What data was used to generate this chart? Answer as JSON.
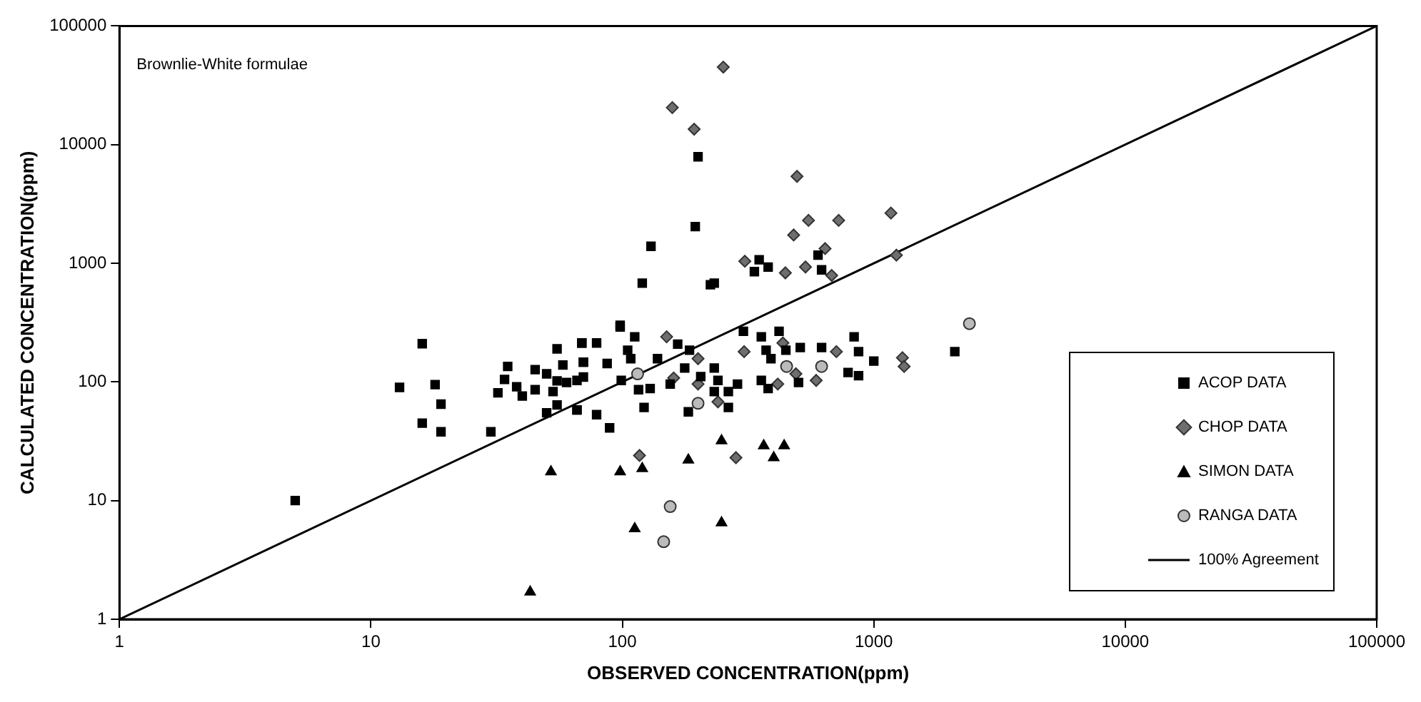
{
  "chart_data": {
    "type": "scatter",
    "xlabel": "OBSERVED CONCENTRATION(ppm)",
    "ylabel": "CALCULATED CONCENTRATION(ppm)",
    "annotations": [
      "Brownlie-White formulae"
    ],
    "log": "xy",
    "xlim": [
      1,
      100000
    ],
    "ylim": [
      1,
      100000
    ],
    "xticks": [
      1,
      10,
      100,
      1000,
      10000,
      100000
    ],
    "yticks": [
      1,
      10,
      100,
      1000,
      10000,
      100000
    ],
    "grid": false,
    "legend": "bottom right",
    "series": [
      {
        "name": "ACOP DATA",
        "color": "#000000",
        "marker": "square",
        "x": [
          5,
          16,
          13,
          18,
          19,
          16,
          19,
          30,
          35,
          34,
          32,
          40,
          38,
          45,
          45,
          50,
          50,
          55,
          58,
          55,
          53,
          60,
          55,
          66,
          66,
          69,
          70,
          98,
          69,
          79,
          112,
          105,
          70,
          87,
          108,
          138,
          166,
          185,
          70,
          99,
          66,
          79,
          89,
          122,
          116,
          129,
          155,
          183,
          205,
          232,
          264,
          264,
          287,
          303,
          357,
          420,
          373,
          390,
          357,
          380,
          447,
          510,
          502,
          620,
          835,
          870,
          1000,
          790,
          870,
          2100,
          177,
          240,
          232,
          200,
          195,
          130,
          120,
          224,
          232,
          335,
          350,
          380,
          600,
          620,
          98
        ],
        "values": [
          10,
          210,
          90,
          95,
          65,
          45,
          38,
          38,
          135,
          105,
          81,
          76,
          91,
          127,
          86,
          117,
          55,
          190,
          139,
          102,
          83,
          99,
          64,
          58,
          103,
          213,
          147,
          290,
          213,
          213,
          240,
          185,
          147,
          143,
          157,
          157,
          208,
          185,
          110,
          103,
          58,
          53,
          41,
          61,
          86,
          88,
          96,
          56,
          111,
          131,
          61,
          83,
          96,
          267,
          240,
          267,
          185,
          157,
          103,
          88,
          185,
          195,
          99,
          195,
          240,
          180,
          150,
          120,
          113,
          180,
          131,
          103,
          83,
          7900,
          2040,
          1390,
          680,
          660,
          680,
          850,
          1070,
          930,
          1170,
          880,
          300
        ]
      },
      {
        "name": "CHOP DATA",
        "color": "#6e6e6e",
        "marker": "diamond",
        "x": [
          252,
          158,
          193,
          495,
          550,
          725,
          1170,
          480,
          307,
          445,
          535,
          640,
          680,
          1230,
          150,
          200,
          305,
          435,
          710,
          1300,
          1320,
          117,
          283,
          240,
          200,
          415,
          590,
          490,
          160
        ],
        "values": [
          45000,
          20500,
          13500,
          5400,
          2300,
          2300,
          2650,
          1730,
          1040,
          830,
          930,
          1330,
          790,
          1170,
          240,
          157,
          180,
          213,
          180,
          160,
          135,
          24,
          23,
          68,
          96,
          96,
          103,
          117,
          108
        ]
      },
      {
        "name": "SIMON DATA",
        "color": "#000000",
        "marker": "triangle",
        "x": [
          98,
          120,
          183,
          248,
          365,
          440,
          400,
          112,
          248,
          52,
          43
        ],
        "values": [
          17.5,
          18.6,
          22,
          32,
          29,
          29,
          23,
          5.8,
          6.5,
          17.5,
          1.7
        ]
      },
      {
        "name": "RANGA DATA",
        "color": "#bbbbbb",
        "marker": "circle",
        "x": [
          155,
          146,
          200,
          450,
          620,
          2400,
          115
        ],
        "values": [
          8.9,
          4.5,
          66,
          135,
          135,
          310,
          117
        ]
      },
      {
        "name": "100% Agreement",
        "type": "line",
        "color": "#000000",
        "marker": "none",
        "line_style": "solid",
        "x": [
          1,
          100000
        ],
        "values": [
          1,
          100000
        ]
      }
    ]
  }
}
